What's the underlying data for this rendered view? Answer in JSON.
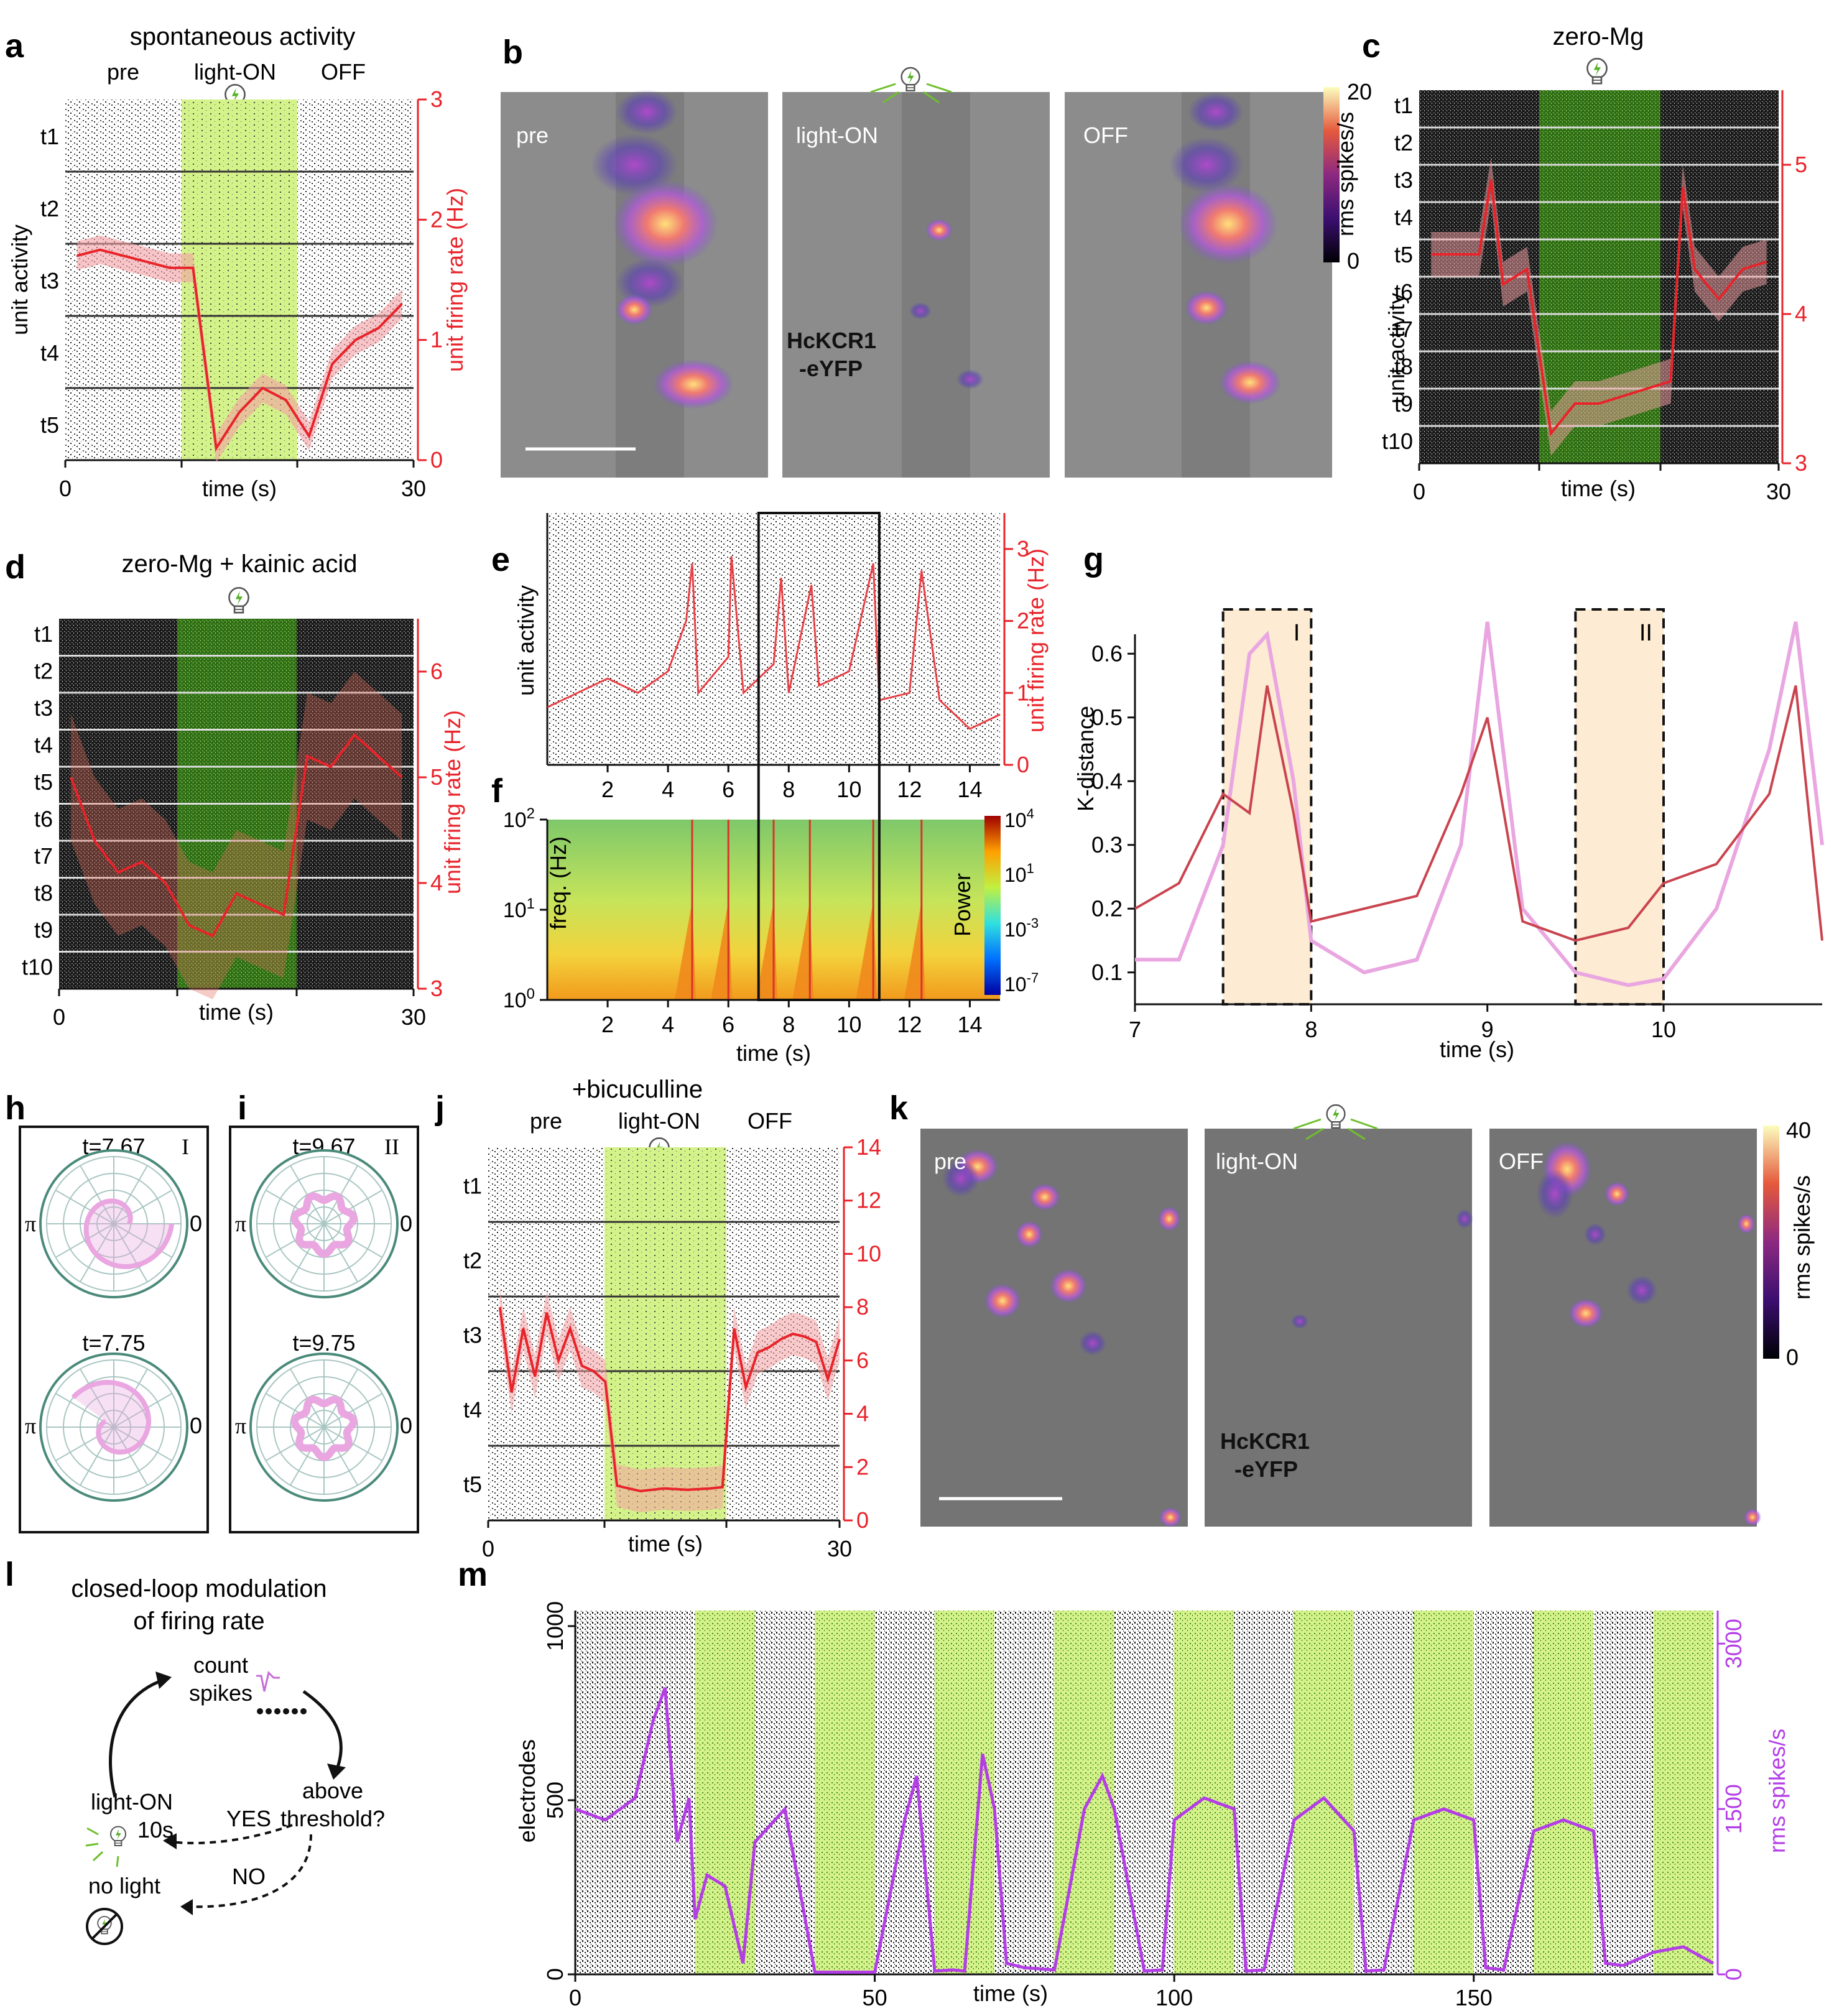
{
  "panel_letters": [
    "a",
    "b",
    "c",
    "d",
    "e",
    "f",
    "g",
    "h",
    "i",
    "j",
    "k",
    "l",
    "m"
  ],
  "colors": {
    "raster": "#111111",
    "rate": "#e8232a",
    "rate_band": "#f4a0a3",
    "green": "#d4f28a",
    "green_dark": "#3a7d12",
    "pink": "#e9a6e0",
    "kdist_red": "#c9444f",
    "purple": "#b43ee6",
    "pale_peach": "#fdebd3"
  },
  "icons": [
    "lightbulb-icon",
    "no-light-icon",
    "spike-waveform-icon"
  ],
  "a": {
    "title": "spontaneous activity",
    "conditions": [
      "pre",
      "light-ON",
      "OFF"
    ],
    "rows": [
      "t1",
      "t2",
      "t3",
      "t4",
      "t5"
    ],
    "ylabel_left": "unit activity",
    "ylabel_right": "unit firing rate (Hz)",
    "xlabel": "time (s)",
    "xticks": [
      "0",
      "30"
    ],
    "yticks_right": [
      "0",
      "1",
      "2",
      "3"
    ]
  },
  "b": {
    "images": [
      "pre",
      "light-ON",
      "OFF"
    ],
    "construct": [
      "HcKCR1",
      "-eYFP"
    ],
    "colorbar_label": "rms spikes/s",
    "colorbar_ticks": [
      "20",
      "0"
    ]
  },
  "c": {
    "title": "zero-Mg",
    "rows": [
      "t1",
      "t2",
      "t3",
      "t4",
      "t5",
      "t6",
      "t7",
      "t8",
      "t9",
      "t10"
    ],
    "ylabel_left": "unit activity",
    "xlabel": "time (s)",
    "xticks": [
      "0",
      "30"
    ],
    "yticks_right": [
      "5",
      "4",
      "3"
    ]
  },
  "d": {
    "title": "zero-Mg + kainic acid",
    "rows": [
      "t1",
      "t2",
      "t3",
      "t4",
      "t5",
      "t6",
      "t7",
      "t8",
      "t9",
      "t10"
    ],
    "ylabel_right": "unit firing rate (Hz)",
    "xlabel": "time (s)",
    "xticks": [
      "0",
      "30"
    ],
    "yticks_right": [
      "6",
      "5",
      "4",
      "3"
    ]
  },
  "e": {
    "ylabel_left": "unit activity",
    "ylabel_right": "unit firing rate (Hz)",
    "xticks": [
      "2",
      "4",
      "6",
      "8",
      "10",
      "12",
      "14"
    ],
    "yticks_right": [
      "0",
      "1",
      "2",
      "3"
    ]
  },
  "f": {
    "ylabel": "freq. (Hz)",
    "xlabel": "time (s)",
    "xticks": [
      "2",
      "4",
      "6",
      "8",
      "10",
      "12",
      "14"
    ],
    "yticks": [
      "10",
      "10",
      "10"
    ],
    "ytick_exps": [
      "0",
      "1",
      "2"
    ],
    "colorbar_label": "Power",
    "colorbar_ticks": [
      "10",
      "10",
      "10",
      "10"
    ],
    "colorbar_exps": [
      "4",
      "1",
      "-3",
      "-7"
    ]
  },
  "g": {
    "ylabel": "K-distance",
    "xlabel": "time (s)",
    "xticks": [
      "7",
      "8",
      "9",
      "10"
    ],
    "yticks": [
      "0.1",
      "0.2",
      "0.3",
      "0.4",
      "0.5",
      "0.6"
    ],
    "windows": [
      "I",
      "II"
    ]
  },
  "h": {
    "label_window": "I",
    "times": [
      "t=7.67",
      "t=7.75"
    ],
    "angle_labels": [
      "π",
      "0"
    ]
  },
  "i": {
    "label_window": "II",
    "times": [
      "t=9.67",
      "t=9.75"
    ],
    "angle_labels": [
      "π",
      "0"
    ]
  },
  "j": {
    "title": "+bicuculline",
    "conditions": [
      "pre",
      "light-ON",
      "OFF"
    ],
    "rows": [
      "t1",
      "t2",
      "t3",
      "t4",
      "t5"
    ],
    "xlabel": "time (s)",
    "xticks": [
      "0",
      "30"
    ],
    "yticks_right": [
      "0",
      "2",
      "4",
      "6",
      "8",
      "10",
      "12",
      "14"
    ]
  },
  "k": {
    "images": [
      "pre",
      "light-ON",
      "OFF"
    ],
    "construct": [
      "HcKCR1",
      "-eYFP"
    ],
    "colorbar_label": "rms spikes/s",
    "colorbar_ticks": [
      "40",
      "0"
    ]
  },
  "l": {
    "title": [
      "closed-loop modulation",
      "of firing rate"
    ],
    "steps": [
      "count",
      "spikes",
      "above",
      "threshold?",
      "light-ON",
      "10s",
      "no light"
    ],
    "branches": [
      "YES",
      "NO"
    ]
  },
  "m": {
    "ylabel_left": "electrodes",
    "ylabel_right": "rms spikes/s",
    "xlabel": "time (s)",
    "xticks": [
      "0",
      "50",
      "100",
      "150"
    ],
    "yticks_left": [
      "0",
      "500",
      "1000"
    ],
    "yticks_right": [
      "0",
      "1500",
      "3000"
    ]
  },
  "chart_data": [
    {
      "type": "line",
      "panel": "a",
      "x": [
        1,
        3,
        5,
        7,
        9,
        11,
        13,
        15,
        17,
        19,
        21,
        23,
        25,
        27,
        29
      ],
      "values": [
        1.7,
        1.75,
        1.7,
        1.65,
        1.6,
        1.6,
        0.1,
        0.4,
        0.6,
        0.5,
        0.2,
        0.8,
        1.0,
        1.1,
        1.3
      ],
      "xlim": [
        0,
        30
      ],
      "ylim": [
        0,
        3
      ],
      "light_on": [
        10,
        20
      ]
    },
    {
      "type": "line",
      "panel": "c",
      "x": [
        1,
        3,
        5,
        6,
        7,
        9,
        11,
        13,
        15,
        17,
        19,
        21,
        22,
        23,
        25,
        27,
        29
      ],
      "values": [
        4.4,
        4.4,
        4.4,
        4.9,
        4.2,
        4.3,
        3.2,
        3.4,
        3.4,
        3.45,
        3.5,
        3.55,
        4.85,
        4.3,
        4.1,
        4.3,
        4.35
      ],
      "xlim": [
        0,
        30
      ],
      "ylim": [
        3,
        5.5
      ],
      "light_on": [
        10,
        20
      ]
    },
    {
      "type": "line",
      "panel": "d",
      "x": [
        1,
        3,
        5,
        7,
        9,
        11,
        13,
        15,
        17,
        19,
        21,
        23,
        25,
        27,
        29
      ],
      "values": [
        5.0,
        4.4,
        4.1,
        4.2,
        4.0,
        3.6,
        3.5,
        3.9,
        3.8,
        3.7,
        5.2,
        5.1,
        5.4,
        5.2,
        5.0
      ],
      "xlim": [
        0,
        30
      ],
      "ylim": [
        3,
        6.5
      ],
      "light_on": [
        10,
        20
      ]
    },
    {
      "type": "line",
      "panel": "e",
      "x": [
        0,
        1,
        2,
        3,
        4,
        4.6,
        4.8,
        5,
        6,
        6.1,
        6.5,
        7,
        7.5,
        7.75,
        8,
        8.75,
        9,
        10,
        10.8,
        11,
        12,
        12.4,
        13,
        14,
        15
      ],
      "values": [
        0.8,
        1.0,
        1.2,
        1.0,
        1.3,
        2.0,
        2.8,
        1.0,
        1.5,
        2.9,
        1.0,
        1.2,
        1.4,
        2.6,
        1.0,
        2.5,
        1.1,
        1.3,
        2.8,
        0.9,
        1.0,
        2.7,
        0.9,
        0.5,
        0.7
      ],
      "xlim": [
        0,
        15
      ],
      "ylim": [
        0,
        3.5
      ],
      "highlight": [
        7,
        11
      ]
    },
    {
      "type": "heatmap",
      "panel": "f",
      "xlim": [
        0,
        15
      ],
      "ylim": [
        1,
        100
      ],
      "event_times": [
        4.8,
        6.0,
        7.5,
        8.7,
        10.8,
        12.4
      ],
      "highlight": [
        7,
        11
      ]
    },
    {
      "type": "line",
      "panel": "g",
      "xlim": [
        7,
        10.9
      ],
      "ylim": [
        0.05,
        0.65
      ],
      "series": [
        {
          "x": [
            7,
            7.25,
            7.5,
            7.65,
            7.75,
            7.9,
            8.0,
            8.3,
            8.6,
            8.85,
            9.0,
            9.2,
            9.5,
            9.8,
            10.0,
            10.3,
            10.6,
            10.75,
            10.9
          ],
          "values": [
            0.2,
            0.24,
            0.38,
            0.35,
            0.55,
            0.35,
            0.18,
            0.2,
            0.22,
            0.38,
            0.5,
            0.18,
            0.15,
            0.17,
            0.24,
            0.27,
            0.38,
            0.55,
            0.15
          ]
        },
        {
          "x": [
            7,
            7.25,
            7.5,
            7.65,
            7.75,
            7.9,
            8.0,
            8.3,
            8.6,
            8.85,
            9.0,
            9.2,
            9.5,
            9.8,
            10.0,
            10.3,
            10.6,
            10.75,
            10.9
          ],
          "values": [
            0.12,
            0.12,
            0.3,
            0.6,
            0.63,
            0.4,
            0.15,
            0.1,
            0.12,
            0.3,
            0.65,
            0.2,
            0.1,
            0.08,
            0.09,
            0.2,
            0.45,
            0.65,
            0.3
          ]
        }
      ],
      "windows": [
        [
          7.5,
          8.0
        ],
        [
          9.5,
          10.0
        ]
      ]
    },
    {
      "type": "line",
      "panel": "j",
      "x": [
        1,
        2,
        3,
        4,
        5,
        6,
        7,
        8,
        9,
        10,
        11,
        13,
        15,
        17,
        19,
        20,
        21,
        22,
        23,
        24,
        25,
        26,
        27,
        28,
        29,
        30
      ],
      "values": [
        8,
        4.8,
        7.2,
        5.4,
        7.8,
        6.0,
        7.2,
        5.8,
        5.6,
        5.2,
        1.3,
        1.1,
        1.2,
        1.15,
        1.2,
        1.25,
        7.2,
        5.0,
        6.3,
        6.5,
        6.8,
        7.0,
        6.9,
        6.7,
        5.3,
        6.8
      ],
      "xlim": [
        0,
        30
      ],
      "ylim": [
        0,
        14
      ],
      "light_on": [
        10,
        20
      ]
    },
    {
      "type": "line",
      "panel": "m",
      "x": [
        0,
        5,
        10,
        13,
        15,
        17,
        19,
        20,
        22,
        25,
        28,
        30,
        35,
        40,
        45,
        50,
        55,
        57,
        60,
        63,
        65,
        68,
        70,
        72,
        75,
        80,
        85,
        88,
        90,
        95,
        98,
        100,
        105,
        110,
        112,
        115,
        120,
        125,
        130,
        132,
        135,
        140,
        145,
        150,
        152,
        155,
        160,
        165,
        170,
        172,
        175,
        180,
        185,
        190
      ],
      "values": [
        1500,
        1400,
        1600,
        2300,
        2600,
        1200,
        1600,
        500,
        900,
        800,
        100,
        1200,
        1500,
        20,
        20,
        20,
        1400,
        1800,
        30,
        40,
        30,
        2000,
        1500,
        100,
        60,
        40,
        1500,
        1800,
        1500,
        30,
        40,
        1400,
        1600,
        1500,
        30,
        40,
        1400,
        1600,
        1300,
        30,
        40,
        1400,
        1500,
        1400,
        60,
        40,
        1300,
        1400,
        1300,
        100,
        80,
        200,
        250,
        100
      ],
      "xlim": [
        0,
        190
      ],
      "ylim": [
        0,
        3300
      ],
      "light_on_periods": [
        [
          20,
          30
        ],
        [
          40,
          50
        ],
        [
          60,
          70
        ],
        [
          80,
          90
        ],
        [
          100,
          110
        ],
        [
          120,
          130
        ],
        [
          140,
          150
        ],
        [
          160,
          170
        ],
        [
          180,
          190
        ]
      ]
    }
  ]
}
